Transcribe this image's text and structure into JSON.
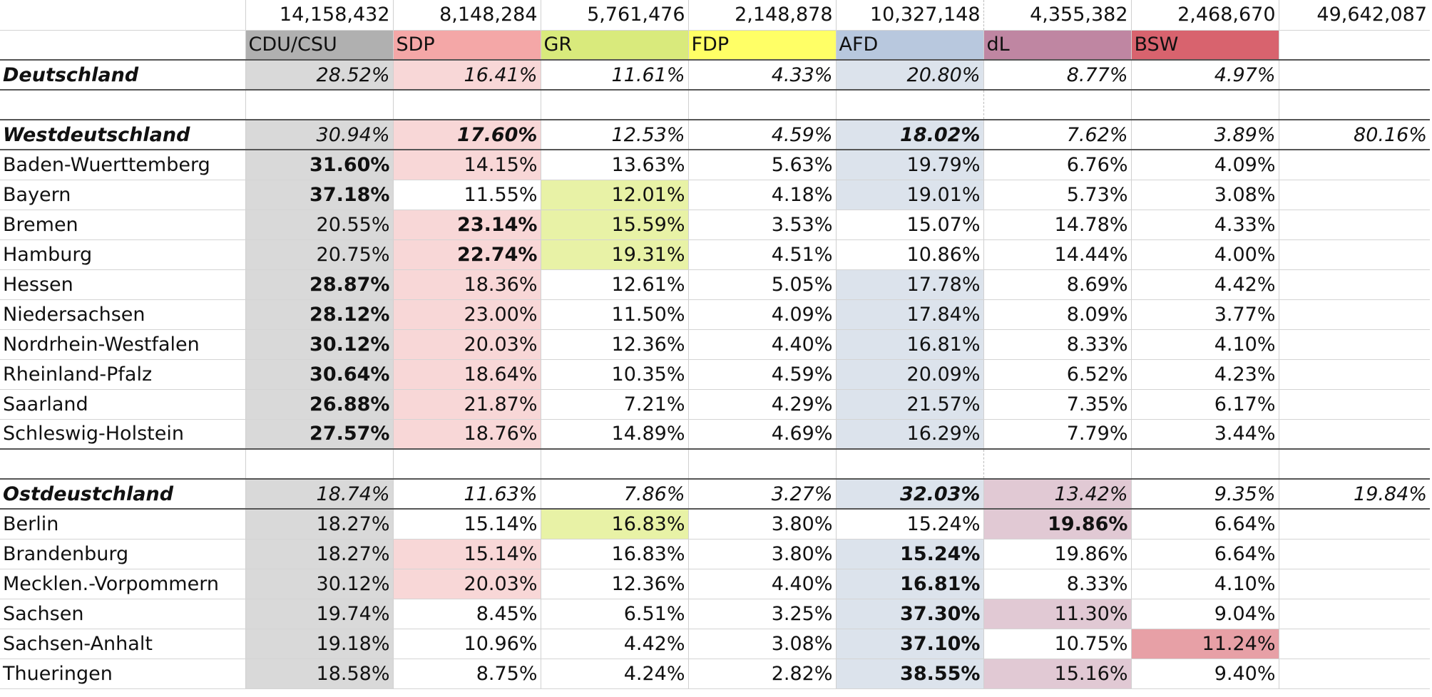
{
  "colors": {
    "cdu": "#b0b0b0",
    "sdp": "#f4a7a7",
    "gr": "#d9ea7c",
    "fdp": "#ffff66",
    "afd": "#b8c8de",
    "dl": "#bf86a2",
    "bsw": "#d8636e"
  },
  "totals": [
    "14,158,432",
    "8,148,284",
    "5,761,476",
    "2,148,878",
    "10,327,148",
    "4,355,382",
    "2,468,670",
    "49,642,087"
  ],
  "parties": [
    "CDU/CSU",
    "SDP",
    "GR",
    "FDP",
    "AFD",
    "dL",
    "BSW"
  ],
  "deutschland": {
    "name": "Deutschland",
    "values": [
      "28.52%",
      "16.41%",
      "11.61%",
      "4.33%",
      "20.80%",
      "8.77%",
      "4.97%"
    ]
  },
  "west": {
    "name": "Westdeutschland",
    "values": [
      "30.94%",
      "17.60%",
      "12.53%",
      "4.59%",
      "18.02%",
      "7.62%",
      "3.89%"
    ],
    "share": "80.16%",
    "rows": [
      {
        "name": "Baden-Wuerttemberg",
        "values": [
          "31.60%",
          "14.15%",
          "13.63%",
          "5.63%",
          "19.79%",
          "6.76%",
          "4.09%"
        ]
      },
      {
        "name": "Bayern",
        "values": [
          "37.18%",
          "11.55%",
          "12.01%",
          "4.18%",
          "19.01%",
          "5.73%",
          "3.08%"
        ]
      },
      {
        "name": "Bremen",
        "values": [
          "20.55%",
          "23.14%",
          "15.59%",
          "3.53%",
          "15.07%",
          "14.78%",
          "4.33%"
        ]
      },
      {
        "name": "Hamburg",
        "values": [
          "20.75%",
          "22.74%",
          "19.31%",
          "4.51%",
          "10.86%",
          "14.44%",
          "4.00%"
        ]
      },
      {
        "name": "Hessen",
        "values": [
          "28.87%",
          "18.36%",
          "12.61%",
          "5.05%",
          "17.78%",
          "8.69%",
          "4.42%"
        ]
      },
      {
        "name": "Niedersachsen",
        "values": [
          "28.12%",
          "23.00%",
          "11.50%",
          "4.09%",
          "17.84%",
          "8.09%",
          "3.77%"
        ]
      },
      {
        "name": "Nordrhein-Westfalen",
        "values": [
          "30.12%",
          "20.03%",
          "12.36%",
          "4.40%",
          "16.81%",
          "8.33%",
          "4.10%"
        ]
      },
      {
        "name": "Rheinland-Pfalz",
        "values": [
          "30.64%",
          "18.64%",
          "10.35%",
          "4.59%",
          "20.09%",
          "6.52%",
          "4.23%"
        ]
      },
      {
        "name": "Saarland",
        "values": [
          "26.88%",
          "21.87%",
          "7.21%",
          "4.29%",
          "21.57%",
          "7.35%",
          "6.17%"
        ]
      },
      {
        "name": "Schleswig-Holstein",
        "values": [
          "27.57%",
          "18.76%",
          "14.89%",
          "4.69%",
          "16.29%",
          "7.79%",
          "3.44%"
        ]
      }
    ]
  },
  "east": {
    "name": "Ostdeustchland",
    "values": [
      "18.74%",
      "11.63%",
      "7.86%",
      "3.27%",
      "32.03%",
      "13.42%",
      "9.35%"
    ],
    "share": "19.84%",
    "rows": [
      {
        "name": "Berlin",
        "values": [
          "18.27%",
          "15.14%",
          "16.83%",
          "3.80%",
          "15.24%",
          "19.86%",
          "6.64%"
        ]
      },
      {
        "name": "Brandenburg",
        "values": [
          "18.27%",
          "15.14%",
          "16.83%",
          "3.80%",
          "15.24%",
          "19.86%",
          "6.64%"
        ]
      },
      {
        "name": "Mecklen.-Vorpommern",
        "values": [
          "30.12%",
          "20.03%",
          "12.36%",
          "4.40%",
          "16.81%",
          "8.33%",
          "4.10%"
        ]
      },
      {
        "name": "Sachsen",
        "values": [
          "19.74%",
          "8.45%",
          "6.51%",
          "3.25%",
          "37.30%",
          "11.30%",
          "9.04%"
        ]
      },
      {
        "name": "Sachsen-Anhalt",
        "values": [
          "19.18%",
          "10.96%",
          "4.42%",
          "3.08%",
          "37.10%",
          "10.75%",
          "11.24%"
        ]
      },
      {
        "name": "Thueringen",
        "values": [
          "18.58%",
          "8.75%",
          "4.24%",
          "2.82%",
          "38.55%",
          "15.16%",
          "9.40%"
        ]
      }
    ]
  }
}
